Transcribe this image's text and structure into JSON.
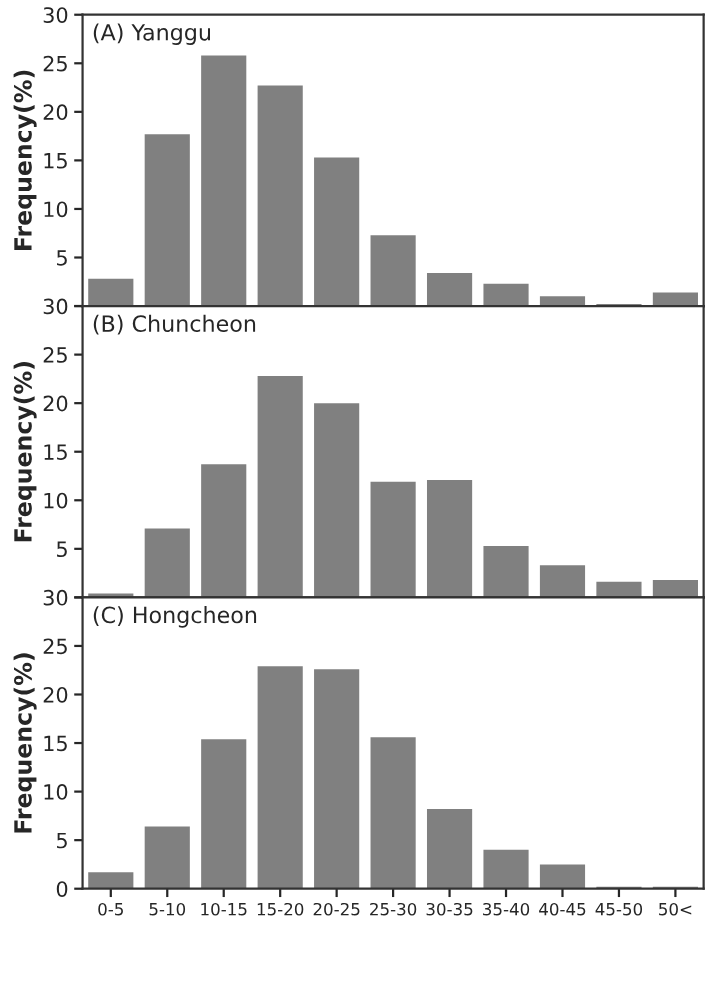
{
  "chart_data": [
    {
      "type": "bar",
      "title": "(A) Yanggu",
      "ylabel": "Frequency(%)",
      "categories": [
        null,
        null,
        null,
        null,
        null,
        null,
        null,
        null,
        null,
        null,
        null
      ],
      "tick_labels": "y",
      "color": "#808080",
      "values": [
        2.8,
        17.7,
        25.8,
        22.7,
        15.3,
        7.3,
        3.4,
        2.3,
        1.0,
        0.2,
        1.4
      ],
      "ylim": [
        0,
        30
      ],
      "yticks": [
        {
          "value": 0,
          "label": null
        },
        5,
        10,
        15,
        20,
        25,
        30
      ]
    },
    {
      "type": "bar",
      "title": "(B) Chuncheon",
      "ylabel": "Frequency(%)",
      "categories": [
        null,
        null,
        null,
        null,
        null,
        null,
        null,
        null,
        null,
        null,
        null
      ],
      "tick_labels": "y",
      "color": "#808080",
      "values": [
        0.4,
        7.1,
        13.7,
        22.8,
        20.0,
        11.9,
        12.1,
        5.3,
        3.3,
        1.6,
        1.8
      ],
      "ylim": [
        0,
        30
      ],
      "yticks": [
        {
          "value": 0,
          "label": null
        },
        5,
        10,
        15,
        20,
        25,
        30
      ]
    },
    {
      "type": "bar",
      "title": "(C) Hongcheon",
      "ylabel": "Frequency(%)",
      "categories": [
        "0-5",
        "5-10",
        "10-15",
        "15-20",
        "20-25",
        "25-30",
        "30-35",
        "35-40",
        "40-45",
        "45-50",
        "50<"
      ],
      "color": "#808080",
      "values": [
        1.7,
        6.4,
        15.4,
        22.9,
        22.6,
        15.6,
        8.2,
        4.0,
        2.5,
        0.2,
        0.2
      ],
      "ylim": [
        0,
        30
      ],
      "yticks": [
        0,
        5,
        10,
        15,
        20,
        25,
        30
      ]
    }
  ]
}
